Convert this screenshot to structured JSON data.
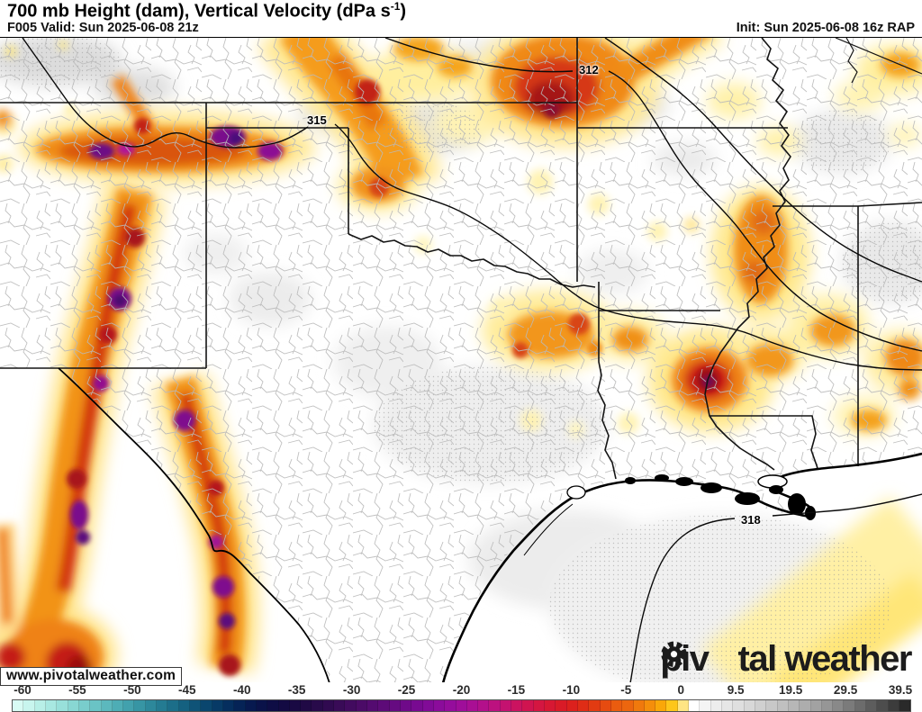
{
  "header": {
    "title_pre": "700 mb Height (dam), Vertical Velocity (dPa s",
    "title_sup": "-1",
    "title_post": ")",
    "valid": "F005 Valid: Sun 2025-06-08 21z",
    "init": "Init: Sun 2025-06-08 16z RAP"
  },
  "map": {
    "contours": [
      {
        "label": "315"
      },
      {
        "label": "312"
      },
      {
        "label": "318"
      }
    ],
    "watermark": "www.pivotalweather.com",
    "logo_pre": "piv",
    "logo_post": "tal weather"
  },
  "colorbar": {
    "ticks": [
      "-60",
      "-55",
      "-50",
      "-45",
      "-40",
      "-35",
      "-30",
      "-25",
      "-20",
      "-15",
      "-10",
      "-5",
      "0",
      "9.5",
      "19.5",
      "29.5",
      "39.5"
    ],
    "colors": [
      "#d8fbf4",
      "#c8f5ee",
      "#b8efe7",
      "#a8e8e1",
      "#98e0da",
      "#88d7d3",
      "#79cdcc",
      "#6ac3c5",
      "#5cb8bd",
      "#4eadb5",
      "#42a1ad",
      "#3795a4",
      "#2d889b",
      "#247b92",
      "#1c6e89",
      "#156180",
      "#0f5377",
      "#0a466e",
      "#073a66",
      "#052e5e",
      "#052356",
      "#07194f",
      "#0a1249",
      "#0e0d45",
      "#130a43",
      "#190943",
      "#200945",
      "#280a4a",
      "#300a50",
      "#390b57",
      "#420b5f",
      "#4b0b67",
      "#540b70",
      "#5d0b78",
      "#660b81",
      "#6f0a89",
      "#780a91",
      "#810b97",
      "#8b0c9b",
      "#950d9c",
      "#9f0e9a",
      "#a90f94",
      "#b3108b",
      "#bc117f",
      "#c41270",
      "#cb1360",
      "#d01450",
      "#d41641",
      "#d71833",
      "#d91b27",
      "#dc211d",
      "#df2d16",
      "#e23b12",
      "#e64b10",
      "#ea5c0f",
      "#ec660f",
      "#f0790d",
      "#f58e0b",
      "#faa709",
      "#fec61a",
      "#ffe584",
      "#ffffff",
      "#f4f4f4",
      "#ededed",
      "#e6e6e6",
      "#dfdfdf",
      "#d8d8d8",
      "#d0d0d0",
      "#c8c8c8",
      "#c0c0c0",
      "#b7b7b7",
      "#adadad",
      "#a2a2a2",
      "#969696",
      "#898989",
      "#7b7b7b",
      "#6c6c6c",
      "#5d5d5d",
      "#4d4d4d",
      "#3c3c3c",
      "#2a2a2a"
    ]
  }
}
